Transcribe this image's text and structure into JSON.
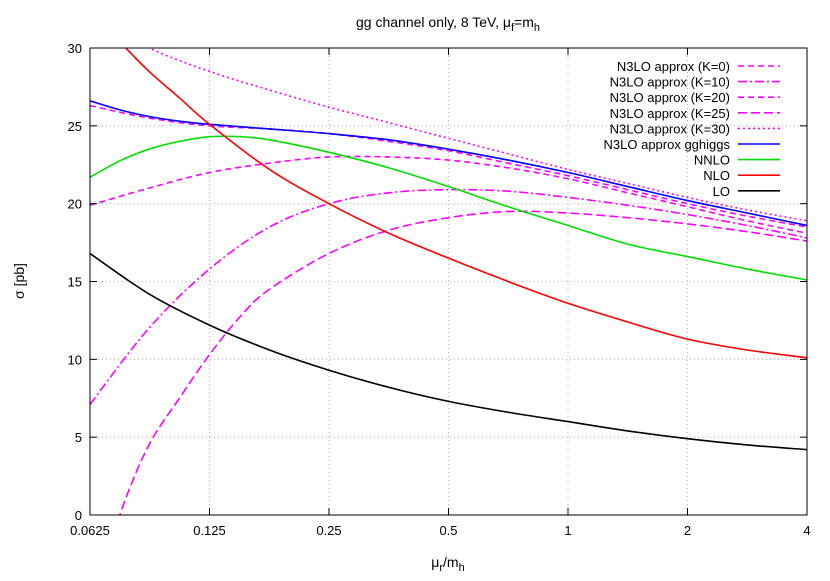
{
  "chart_data": {
    "type": "line",
    "title_main": "gg channel only, 8 TeV, μ",
    "title_sub1": "f",
    "title_mid": "=m",
    "title_sub2": "h",
    "ylabel": "σ [pb]",
    "xlabel_main": "μ",
    "xlabel_sub1": "r",
    "xlabel_mid": "/m",
    "xlabel_sub2": "h",
    "x_scale": "log2",
    "xlim": [
      0.0625,
      4
    ],
    "ylim": [
      0,
      30
    ],
    "x_ticks": [
      0.0625,
      0.125,
      0.25,
      0.5,
      1,
      2,
      4
    ],
    "x_tick_labels": [
      "0.0625",
      "0.125",
      "0.25",
      "0.5",
      "1",
      "2",
      "4"
    ],
    "y_ticks": [
      0,
      5,
      10,
      15,
      20,
      25,
      30
    ],
    "y_tick_labels": [
      "0",
      "5",
      "10",
      "15",
      "20",
      "25",
      "30"
    ],
    "grid": true,
    "legend_position": "top-right",
    "series": [
      {
        "name": "N3LO approx (K=0)",
        "color": "#ff00ff",
        "style": "dash",
        "points": [
          [
            0.0625,
            19.9
          ],
          [
            0.088,
            21.0
          ],
          [
            0.125,
            22.0
          ],
          [
            0.177,
            22.6
          ],
          [
            0.25,
            23.0
          ],
          [
            0.354,
            23.0
          ],
          [
            0.5,
            22.8
          ],
          [
            0.707,
            22.3
          ],
          [
            1,
            21.6
          ],
          [
            1.414,
            20.7
          ],
          [
            2,
            19.8
          ],
          [
            2.828,
            18.9
          ],
          [
            4,
            18.1
          ]
        ]
      },
      {
        "name": "N3LO approx (K=10)",
        "color": "#ff00ff",
        "style": "dashdot",
        "points": [
          [
            0.0625,
            7.1
          ],
          [
            0.088,
            12.0
          ],
          [
            0.125,
            15.8
          ],
          [
            0.177,
            18.5
          ],
          [
            0.25,
            20.0
          ],
          [
            0.354,
            20.7
          ],
          [
            0.5,
            20.9
          ],
          [
            0.707,
            20.8
          ],
          [
            1,
            20.4
          ],
          [
            1.414,
            19.9
          ],
          [
            2,
            19.3
          ],
          [
            2.828,
            18.6
          ],
          [
            4,
            17.8
          ]
        ]
      },
      {
        "name": "N3LO approx (K=20)",
        "color": "#ff00ff",
        "style": "dash",
        "points": [
          [
            0.0625,
            26.3
          ],
          [
            0.088,
            25.5
          ],
          [
            0.125,
            25.0
          ],
          [
            0.177,
            24.8
          ],
          [
            0.25,
            24.5
          ],
          [
            0.354,
            24.0
          ],
          [
            0.5,
            23.4
          ],
          [
            0.707,
            22.6
          ],
          [
            1,
            21.8
          ],
          [
            1.414,
            20.9
          ],
          [
            2,
            20.0
          ],
          [
            2.828,
            19.2
          ],
          [
            4,
            18.5
          ]
        ]
      },
      {
        "name": "N3LO approx (K=25)",
        "color": "#ff00ff",
        "style": "longdash",
        "points": [
          [
            0.0625,
            -6.0
          ],
          [
            0.075,
            0.3
          ],
          [
            0.088,
            4.5
          ],
          [
            0.105,
            7.5
          ],
          [
            0.125,
            10.3
          ],
          [
            0.15,
            12.8
          ],
          [
            0.177,
            14.5
          ],
          [
            0.25,
            16.8
          ],
          [
            0.354,
            18.3
          ],
          [
            0.5,
            19.1
          ],
          [
            0.707,
            19.5
          ],
          [
            1,
            19.4
          ],
          [
            1.414,
            19.1
          ],
          [
            2,
            18.7
          ],
          [
            2.828,
            18.2
          ],
          [
            4,
            17.6
          ]
        ]
      },
      {
        "name": "N3LO approx (K=30)",
        "color": "#ff00ff",
        "style": "dot",
        "points": [
          [
            0.0625,
            32.0
          ],
          [
            0.088,
            30.0
          ],
          [
            0.125,
            28.5
          ],
          [
            0.177,
            27.3
          ],
          [
            0.25,
            26.2
          ],
          [
            0.354,
            25.2
          ],
          [
            0.5,
            24.2
          ],
          [
            0.707,
            23.2
          ],
          [
            1,
            22.2
          ],
          [
            1.414,
            21.3
          ],
          [
            2,
            20.4
          ],
          [
            2.828,
            19.6
          ],
          [
            4,
            18.9
          ]
        ]
      },
      {
        "name": "N3LO approx gghiggs",
        "color": "#0000ff",
        "style": "solid",
        "points": [
          [
            0.0625,
            26.6
          ],
          [
            0.075,
            26.0
          ],
          [
            0.088,
            25.6
          ],
          [
            0.105,
            25.3
          ],
          [
            0.125,
            25.1
          ],
          [
            0.177,
            24.8
          ],
          [
            0.25,
            24.5
          ],
          [
            0.354,
            24.1
          ],
          [
            0.5,
            23.5
          ],
          [
            0.707,
            22.8
          ],
          [
            1,
            22.0
          ],
          [
            1.414,
            21.1
          ],
          [
            2,
            20.2
          ],
          [
            2.828,
            19.4
          ],
          [
            4,
            18.6
          ]
        ]
      },
      {
        "name": "NNLO",
        "color": "#00dd00",
        "style": "solid",
        "points": [
          [
            0.0625,
            21.7
          ],
          [
            0.075,
            22.8
          ],
          [
            0.088,
            23.5
          ],
          [
            0.105,
            24.0
          ],
          [
            0.125,
            24.3
          ],
          [
            0.15,
            24.3
          ],
          [
            0.177,
            24.1
          ],
          [
            0.25,
            23.3
          ],
          [
            0.354,
            22.3
          ],
          [
            0.5,
            21.1
          ],
          [
            0.707,
            19.8
          ],
          [
            1,
            18.6
          ],
          [
            1.414,
            17.4
          ],
          [
            2,
            16.6
          ],
          [
            2.828,
            15.8
          ],
          [
            4,
            15.1
          ]
        ]
      },
      {
        "name": "NLO",
        "color": "#ff0000",
        "style": "solid",
        "points": [
          [
            0.0625,
            32.5
          ],
          [
            0.075,
            30.3
          ],
          [
            0.088,
            28.5
          ],
          [
            0.105,
            26.8
          ],
          [
            0.125,
            25.1
          ],
          [
            0.177,
            22.2
          ],
          [
            0.25,
            20.0
          ],
          [
            0.354,
            18.1
          ],
          [
            0.5,
            16.5
          ],
          [
            0.707,
            15.0
          ],
          [
            1,
            13.6
          ],
          [
            1.414,
            12.4
          ],
          [
            2,
            11.3
          ],
          [
            2.828,
            10.6
          ],
          [
            4,
            10.1
          ]
        ]
      },
      {
        "name": "LO",
        "color": "#000000",
        "style": "solid",
        "points": [
          [
            0.0625,
            16.8
          ],
          [
            0.088,
            14.2
          ],
          [
            0.125,
            12.2
          ],
          [
            0.177,
            10.6
          ],
          [
            0.25,
            9.3
          ],
          [
            0.354,
            8.2
          ],
          [
            0.5,
            7.3
          ],
          [
            0.707,
            6.6
          ],
          [
            1,
            6.0
          ],
          [
            1.414,
            5.4
          ],
          [
            2,
            4.9
          ],
          [
            2.828,
            4.5
          ],
          [
            4,
            4.2
          ]
        ]
      }
    ]
  }
}
